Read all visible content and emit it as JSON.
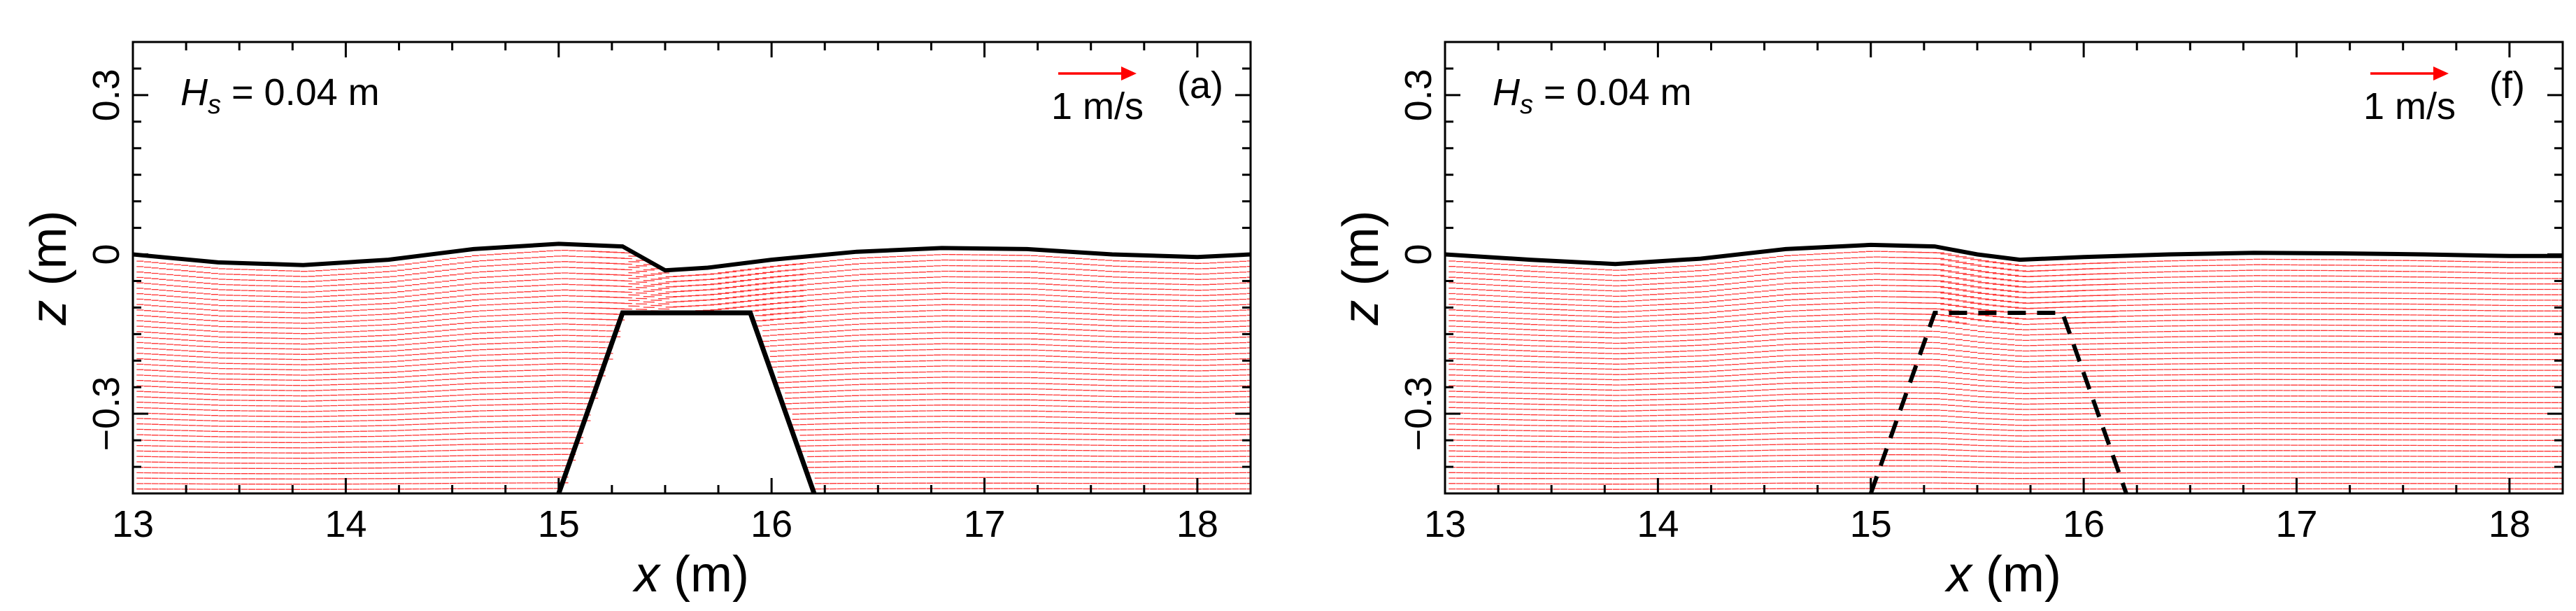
{
  "chart_data": [
    {
      "type": "vector-field",
      "panel_label": "(a)",
      "annotation": {
        "symbol": "H",
        "subscript": "s",
        "text": " = 0.04 m"
      },
      "reference_vector": {
        "label": "1 m/s",
        "color": "#ff0000"
      },
      "xlabel": {
        "var": "x",
        "unit": " (m)"
      },
      "ylabel": {
        "var": "z",
        "unit": " (m)"
      },
      "xlim": [
        13,
        18.25
      ],
      "ylim": [
        -0.45,
        0.4
      ],
      "xticks": [
        13,
        14,
        15,
        16,
        17,
        18
      ],
      "xtick_labels": [
        "13",
        "14",
        "15",
        "16",
        "17",
        "18"
      ],
      "yticks": [
        -0.3,
        0,
        0.3
      ],
      "ytick_labels": [
        "−0.3",
        "0",
        "0.3"
      ],
      "free_surface": {
        "x": [
          13.0,
          13.4,
          13.8,
          14.2,
          14.6,
          15.0,
          15.3,
          15.5,
          15.7,
          16.0,
          16.4,
          16.8,
          17.2,
          17.6,
          18.0,
          18.25
        ],
        "z": [
          0.0,
          -0.015,
          -0.02,
          -0.01,
          0.01,
          0.02,
          0.015,
          -0.03,
          -0.025,
          -0.01,
          0.005,
          0.012,
          0.01,
          0.0,
          -0.005,
          0.0
        ]
      },
      "structure": {
        "style": "solid",
        "x": [
          15.0,
          15.3,
          15.9,
          16.2
        ],
        "z": [
          -0.45,
          -0.11,
          -0.11,
          -0.45
        ]
      },
      "colors": {
        "vectors": "#ff0000",
        "surface": "#000000",
        "structure": "#000000"
      }
    },
    {
      "type": "vector-field",
      "panel_label": "(f)",
      "annotation": {
        "symbol": "H",
        "subscript": "s",
        "text": " = 0.04 m"
      },
      "reference_vector": {
        "label": "1 m/s",
        "color": "#ff0000"
      },
      "xlabel": {
        "var": "x",
        "unit": " (m)"
      },
      "ylabel": {
        "var": "z",
        "unit": " (m)"
      },
      "xlim": [
        13,
        18.25
      ],
      "ylim": [
        -0.45,
        0.4
      ],
      "xticks": [
        13,
        14,
        15,
        16,
        17,
        18
      ],
      "xtick_labels": [
        "13",
        "14",
        "15",
        "16",
        "17",
        "18"
      ],
      "yticks": [
        -0.3,
        0,
        0.3
      ],
      "ytick_labels": [
        "−0.3",
        "0",
        "0.3"
      ],
      "free_surface": {
        "x": [
          13.0,
          13.4,
          13.8,
          14.2,
          14.6,
          15.0,
          15.3,
          15.5,
          15.7,
          16.0,
          16.4,
          16.8,
          17.2,
          17.6,
          18.0,
          18.25
        ],
        "z": [
          0.0,
          -0.01,
          -0.018,
          -0.008,
          0.01,
          0.018,
          0.015,
          0.0,
          -0.01,
          -0.005,
          0.0,
          0.003,
          0.002,
          0.0,
          -0.003,
          -0.003
        ]
      },
      "structure": {
        "style": "dashed",
        "x": [
          15.0,
          15.3,
          15.9,
          16.2
        ],
        "z": [
          -0.45,
          -0.11,
          -0.11,
          -0.45
        ]
      },
      "colors": {
        "vectors": "#ff0000",
        "surface": "#000000",
        "structure": "#000000"
      }
    }
  ]
}
